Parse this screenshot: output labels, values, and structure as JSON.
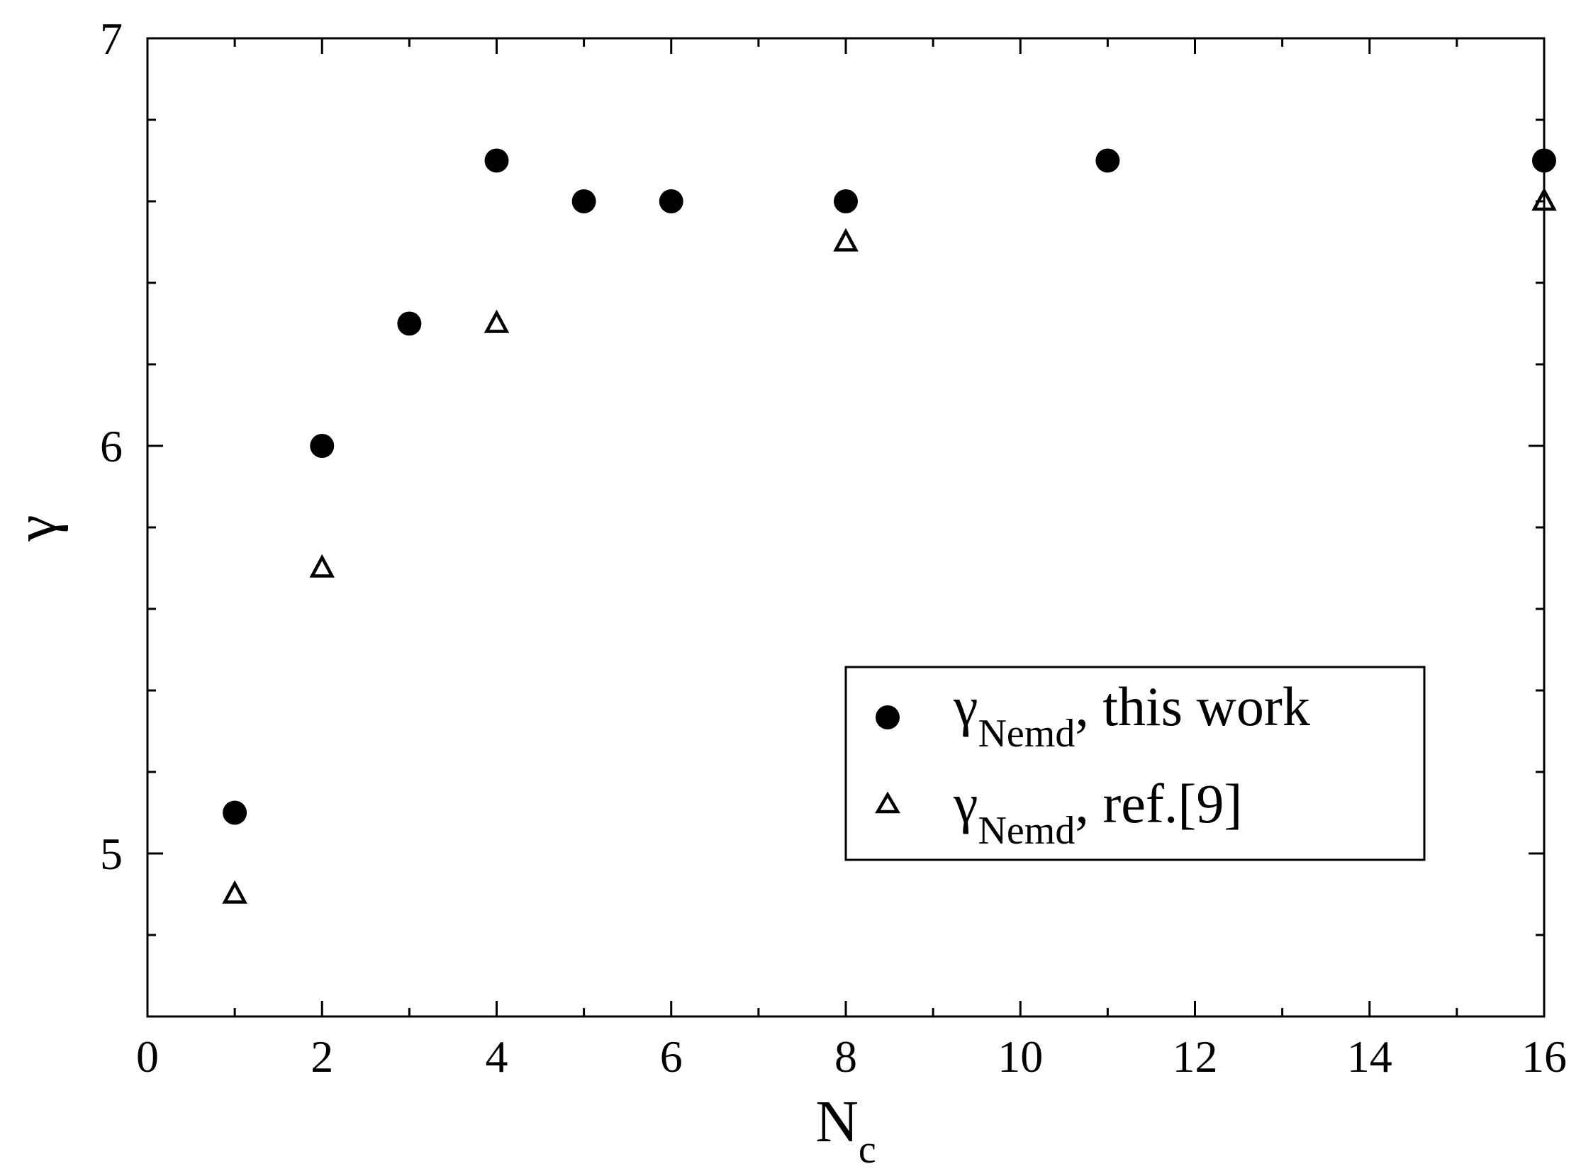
{
  "chart_data": {
    "type": "scatter",
    "xlabel": {
      "main": "N",
      "sub": "c"
    },
    "ylabel": "γ",
    "xlim": [
      0,
      16
    ],
    "ylim": [
      4.6,
      7
    ],
    "x_ticks": [
      "0",
      "2",
      "4",
      "6",
      "8",
      "10",
      "12",
      "14",
      "16"
    ],
    "x_tick_values": [
      0,
      2,
      4,
      6,
      8,
      10,
      12,
      14,
      16
    ],
    "y_ticks": [
      "5",
      "6",
      "7"
    ],
    "y_tick_values": [
      5,
      6,
      7
    ],
    "legend_position": "lower-right",
    "series": [
      {
        "marker": "filled-circle",
        "legend": {
          "symbol": "γ",
          "sub": "Nemd",
          "text": ", this work"
        },
        "points": [
          {
            "x": 1,
            "y": 5.1
          },
          {
            "x": 2,
            "y": 6.0
          },
          {
            "x": 3,
            "y": 6.3
          },
          {
            "x": 4,
            "y": 6.7
          },
          {
            "x": 5,
            "y": 6.6
          },
          {
            "x": 6,
            "y": 6.6
          },
          {
            "x": 8,
            "y": 6.6
          },
          {
            "x": 11,
            "y": 6.7
          },
          {
            "x": 16,
            "y": 6.7
          }
        ]
      },
      {
        "marker": "open-triangle",
        "legend": {
          "symbol": "γ",
          "sub": "Nemd",
          "text": ", ref.[9]"
        },
        "points": [
          {
            "x": 1,
            "y": 4.9
          },
          {
            "x": 2,
            "y": 5.7
          },
          {
            "x": 4,
            "y": 6.3
          },
          {
            "x": 8,
            "y": 6.5
          },
          {
            "x": 16,
            "y": 6.6
          }
        ]
      }
    ]
  }
}
